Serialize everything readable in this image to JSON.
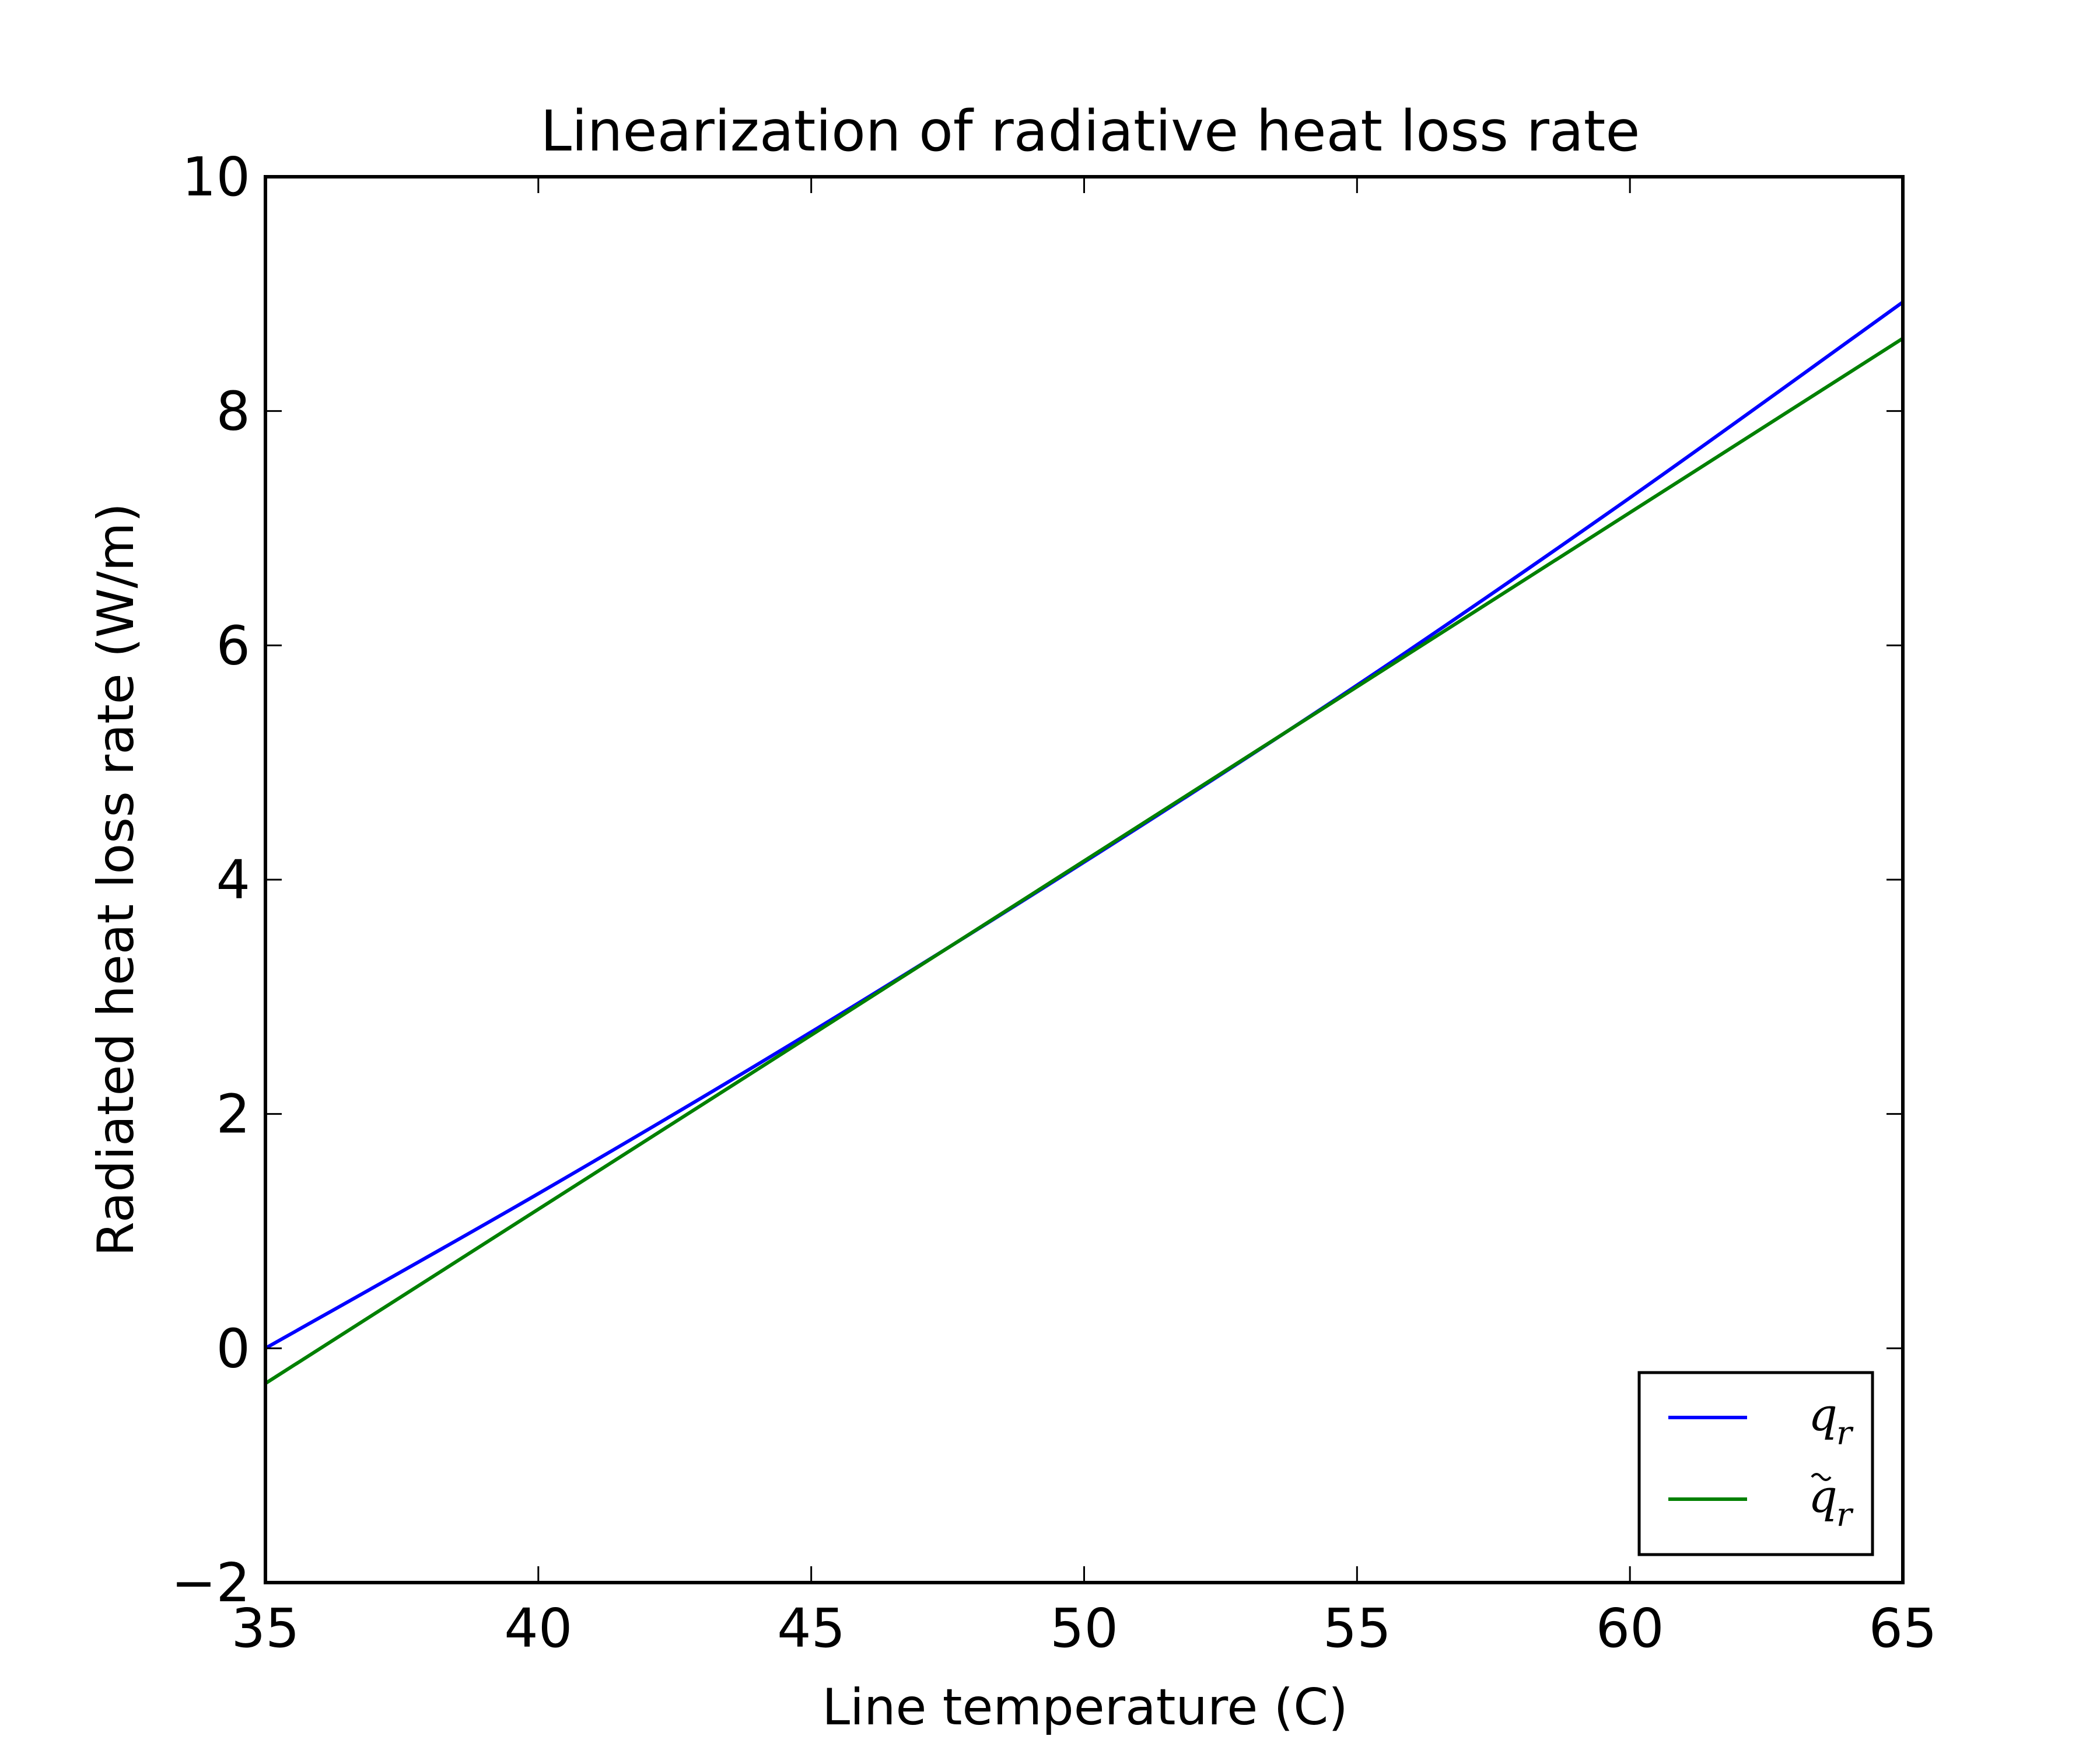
{
  "chart_data": {
    "type": "line",
    "title": "Linearization of radiative heat loss rate",
    "xlabel": "Line temperature (C)",
    "ylabel": "Radiated heat loss rate (W/m)",
    "xlim": [
      35,
      65
    ],
    "ylim": [
      -2,
      10
    ],
    "xticks": [
      35,
      40,
      45,
      50,
      55,
      60,
      65
    ],
    "yticks": [
      -2,
      0,
      2,
      4,
      6,
      8,
      10
    ],
    "xtick_labels": [
      "35",
      "40",
      "45",
      "50",
      "55",
      "60",
      "65"
    ],
    "ytick_labels": [
      "−2",
      "0",
      "2",
      "4",
      "6",
      "8",
      "10"
    ],
    "grid": false,
    "legend_position": "lower-right",
    "series": [
      {
        "name": "q_r",
        "legend_base": "q",
        "legend_sub": "r",
        "legend_tilde": false,
        "color": "#0000ff",
        "x": [
          35,
          40,
          45,
          50,
          55,
          60,
          65
        ],
        "y": [
          0.0,
          1.32,
          2.7,
          4.15,
          5.66,
          7.26,
          8.93
        ]
      },
      {
        "name": "q̃_r",
        "legend_base": "q",
        "legend_sub": "r",
        "legend_tilde": true,
        "color": "#008000",
        "x": [
          35,
          65
        ],
        "y": [
          -0.3,
          8.62
        ]
      }
    ]
  }
}
